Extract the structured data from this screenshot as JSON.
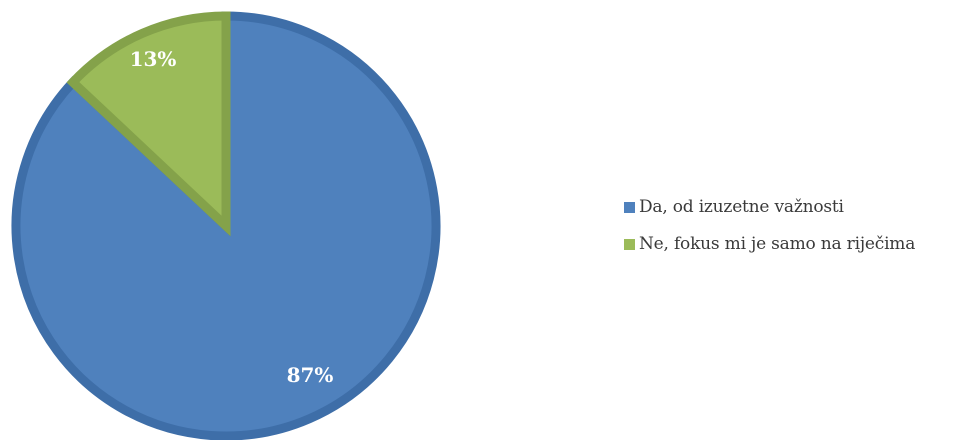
{
  "chart_data": {
    "type": "pie",
    "categories": [
      "Da, od izuzetne važnosti",
      "Ne, fokus mi je samo na riječima"
    ],
    "values": [
      87,
      13
    ],
    "data_labels": [
      "87%",
      "13%"
    ],
    "colors": [
      "#4f81bd",
      "#9bbb59"
    ],
    "border_colors": [
      "#3e6ea8",
      "#84a24a"
    ],
    "legend_position": "right",
    "title": ""
  }
}
